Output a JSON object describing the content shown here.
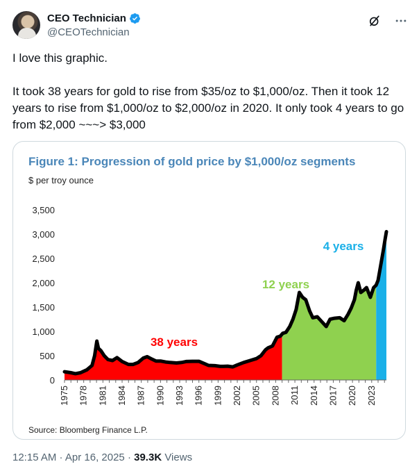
{
  "author": {
    "display_name": "CEO Technician",
    "handle": "@CEOTechnician"
  },
  "icons": {
    "avatar": "avatar",
    "verified": "verified-badge-icon",
    "grok": "grok-icon",
    "more": "more-icon"
  },
  "tweet": {
    "line1": "I love this graphic.",
    "line2": "It took 38 years for gold to rise from $35/oz to $1,000/oz. Then it took 12 years to rise from $1,000/oz to $2,000/oz in 2020. It only took 4 years to go from $2,000 ~~~> $3,000"
  },
  "meta": {
    "time": "12:15 AM · Apr 16, 2025",
    "separator": " · ",
    "views_count": "39.3K",
    "views_label": " Views"
  },
  "colors": {
    "verified": "#1d9bf0",
    "title": "#4a86b8",
    "red": "#ff0000",
    "green": "#8fd14f",
    "blue": "#1ab0e8"
  },
  "chart_data": {
    "type": "area",
    "title": "Figure 1: Progression of gold price by $1,000/oz segments",
    "subtitle": "$ per troy ounce",
    "source": "Source: Bloomberg Finance L.P.",
    "ylim": [
      0,
      3500
    ],
    "yticks": [
      "0",
      "500",
      "1,000",
      "1,500",
      "2,000",
      "2,500",
      "3,000",
      "3,500"
    ],
    "ytick_values": [
      0,
      500,
      1000,
      1500,
      2000,
      2500,
      3000,
      3500
    ],
    "xlim": [
      1975,
      2025.3
    ],
    "xticks": [
      "1975",
      "1978",
      "1981",
      "1984",
      "1987",
      "1990",
      "1993",
      "1996",
      "1999",
      "2002",
      "2005",
      "2008",
      "2011",
      "2014",
      "2017",
      "2020",
      "2023"
    ],
    "xtick_values": [
      1975,
      1978,
      1981,
      1984,
      1987,
      1990,
      1993,
      1996,
      1999,
      2002,
      2005,
      2008,
      2011,
      2014,
      2017,
      2020,
      2023
    ],
    "series": [
      {
        "x": [
          1975,
          1976,
          1976.7,
          1977.5,
          1978.5,
          1979.3,
          1979.7,
          1980.05,
          1980.3,
          1980.7,
          1981.2,
          1981.8,
          1982.5,
          1983.2,
          1984,
          1985,
          1985.7,
          1986.5,
          1987.3,
          1987.9,
          1988.5,
          1989.3,
          1990,
          1990.8,
          1991.5,
          1992.5,
          1993.3,
          1994,
          1995,
          1996,
          1996.8,
          1997.5,
          1998.5,
          1999.3,
          1999.8,
          2000.5,
          2001.3,
          2002,
          2003,
          2004,
          2005,
          2005.7,
          2006.4,
          2006.8,
          2007.5,
          2008.2,
          2008.7,
          2009.1,
          2009.6,
          2010.2,
          2010.7,
          2011.2,
          2011.7,
          2012.2,
          2012.7,
          2013.3,
          2013.8,
          2014.5,
          2015.2,
          2015.9,
          2016.5,
          2017.2,
          2018,
          2018.7,
          2019.3,
          2019.8,
          2020.3,
          2020.6,
          2020.9,
          2021.3,
          2021.8,
          2022.2,
          2022.8,
          2023.3,
          2023.7,
          2024.0,
          2024.4,
          2024.8,
          2025.1,
          2025.3
        ],
        "y": [
          170,
          150,
          130,
          150,
          210,
          300,
          500,
          800,
          650,
          600,
          500,
          420,
          400,
          460,
          380,
          320,
          320,
          360,
          450,
          480,
          440,
          390,
          390,
          370,
          360,
          350,
          360,
          380,
          385,
          385,
          340,
          300,
          295,
          280,
          280,
          285,
          270,
          310,
          360,
          400,
          440,
          500,
          620,
          660,
          700,
          880,
          900,
          960,
          980,
          1100,
          1250,
          1450,
          1800,
          1700,
          1650,
          1420,
          1280,
          1300,
          1200,
          1100,
          1250,
          1270,
          1280,
          1220,
          1350,
          1480,
          1650,
          1850,
          2000,
          1800,
          1850,
          1900,
          1700,
          1900,
          1950,
          2050,
          2350,
          2650,
          2900,
          3050
        ],
        "segments": [
          {
            "label": "38 years",
            "from": 1975,
            "to": 2009.0,
            "color": "#ff0000"
          },
          {
            "label": "12 years",
            "from": 2009.0,
            "to": 2023.7,
            "color": "#8fd14f"
          },
          {
            "label": "4 years",
            "from": 2023.7,
            "to": 2025.3,
            "color": "#1ab0e8"
          }
        ]
      }
    ],
    "annotations": [
      "38 years",
      "12 years",
      "4 years"
    ],
    "grid": false
  }
}
